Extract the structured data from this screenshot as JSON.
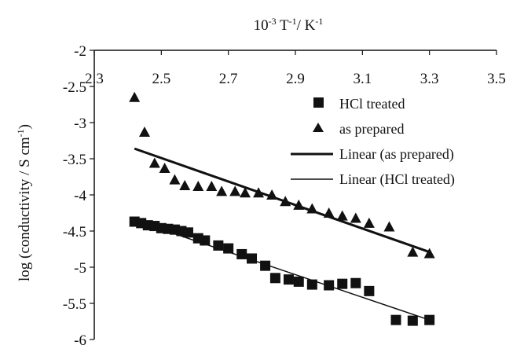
{
  "chart_data": {
    "type": "scatter",
    "x_axis": {
      "label": "10-3 T-1/ K-1",
      "label_parts": [
        "10",
        "-3",
        " T",
        "-1",
        "/ K",
        "-1"
      ],
      "min": 2.3,
      "max": 3.5,
      "ticks": [
        2.3,
        2.5,
        2.7,
        2.9,
        3.1,
        3.3,
        3.5
      ],
      "tick_labels": [
        "2.3",
        "2.5",
        "2.7",
        "2.9",
        "3.1",
        "3.3",
        "3.5"
      ],
      "position": "top"
    },
    "y_axis": {
      "label": "log (conductivity / S cm-1)",
      "label_parts": [
        "log (conductivity / S cm",
        "-1",
        ")"
      ],
      "min": -6,
      "max": -2,
      "ticks": [
        -6,
        -5.5,
        -5,
        -4.5,
        -4,
        -3.5,
        -3,
        -2.5,
        -2
      ],
      "tick_labels": [
        "-6",
        "-5.5",
        "-5",
        "-4.5",
        "-4",
        "-3.5",
        "-3",
        "-2.5",
        "-2"
      ]
    },
    "grid": false,
    "legend_position": "top-right",
    "series": [
      {
        "name": "HCl treated",
        "marker": "square",
        "x": [
          2.42,
          2.44,
          2.46,
          2.48,
          2.5,
          2.52,
          2.54,
          2.56,
          2.58,
          2.61,
          2.63,
          2.67,
          2.7,
          2.74,
          2.77,
          2.81,
          2.84,
          2.88,
          2.91,
          2.95,
          3.0,
          3.04,
          3.08,
          3.12,
          3.2,
          3.25,
          3.3
        ],
        "y": [
          -4.37,
          -4.39,
          -4.42,
          -4.43,
          -4.46,
          -4.47,
          -4.48,
          -4.5,
          -4.52,
          -4.6,
          -4.63,
          -4.7,
          -4.74,
          -4.82,
          -4.88,
          -4.98,
          -5.15,
          -5.17,
          -5.2,
          -5.24,
          -5.25,
          -5.23,
          -5.22,
          -5.33,
          -5.73,
          -5.74,
          -5.73
        ]
      },
      {
        "name": "as prepared",
        "marker": "triangle",
        "x": [
          2.42,
          2.45,
          2.48,
          2.51,
          2.54,
          2.57,
          2.61,
          2.65,
          2.68,
          2.72,
          2.75,
          2.79,
          2.83,
          2.87,
          2.91,
          2.95,
          3.0,
          3.04,
          3.08,
          3.12,
          3.18,
          3.25,
          3.3
        ],
        "y": [
          -2.65,
          -3.13,
          -3.56,
          -3.63,
          -3.79,
          -3.87,
          -3.88,
          -3.88,
          -3.95,
          -3.95,
          -3.97,
          -3.97,
          -4.0,
          -4.09,
          -4.14,
          -4.19,
          -4.25,
          -4.29,
          -4.32,
          -4.39,
          -4.44,
          -4.79,
          -4.81
        ]
      },
      {
        "name": "Linear (as prepared)",
        "type": "line",
        "stroke": "thick",
        "x": [
          2.42,
          3.3
        ],
        "y": [
          -3.36,
          -4.79
        ]
      },
      {
        "name": "Linear (HCl treated)",
        "type": "line",
        "stroke": "thin",
        "x": [
          2.42,
          3.3
        ],
        "y": [
          -4.35,
          -5.73
        ]
      }
    ]
  }
}
